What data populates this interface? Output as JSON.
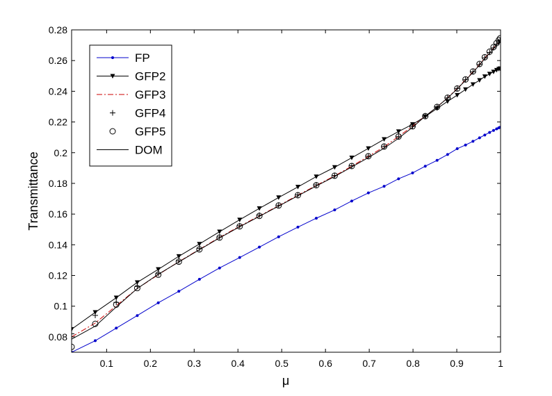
{
  "chart_data": {
    "type": "line",
    "title": "",
    "xlabel": "μ",
    "ylabel": "Transmittance",
    "xlim": [
      0.02,
      1.0
    ],
    "ylim": [
      0.07,
      0.28
    ],
    "grid": false,
    "legend_position": "top-left",
    "xticks": [
      0.1,
      0.2,
      0.3,
      0.4,
      0.5,
      0.6,
      0.7,
      0.8,
      0.9,
      1
    ],
    "xtick_labels": [
      "0.1",
      "0.2",
      "0.3",
      "0.4",
      "0.5",
      "0.6",
      "0.7",
      "0.8",
      "0.9",
      "1"
    ],
    "yticks": [
      0.08,
      0.1,
      0.12,
      0.14,
      0.16,
      0.18,
      0.2,
      0.22,
      0.24,
      0.26,
      0.28
    ],
    "ytick_labels": [
      "0.08",
      "0.1",
      "0.12",
      "0.14",
      "0.16",
      "0.18",
      "0.2",
      "0.22",
      "0.24",
      "0.26",
      "0.28"
    ],
    "series": [
      {
        "name": "FP",
        "color": "#0000cc",
        "line": "solid",
        "marker": "dot",
        "x": [
          0.02,
          0.074,
          0.122,
          0.17,
          0.218,
          0.265,
          0.312,
          0.358,
          0.404,
          0.449,
          0.493,
          0.537,
          0.579,
          0.621,
          0.66,
          0.698,
          0.734,
          0.767,
          0.799,
          0.828,
          0.855,
          0.879,
          0.901,
          0.92,
          0.937,
          0.952,
          0.964,
          0.975,
          0.984,
          0.991,
          0.996,
          0.999
        ],
        "y": [
          0.07,
          0.0775,
          0.0857,
          0.0939,
          0.1022,
          0.1097,
          0.1175,
          0.1249,
          0.1317,
          0.1385,
          0.1452,
          0.1515,
          0.1573,
          0.1627,
          0.1685,
          0.1738,
          0.1781,
          0.183,
          0.1868,
          0.1912,
          0.195,
          0.1988,
          0.2026,
          0.205,
          0.2074,
          0.2097,
          0.2115,
          0.2132,
          0.2145,
          0.2155,
          0.2162,
          0.2165
        ]
      },
      {
        "name": "GFP2",
        "color": "#000000",
        "line": "solid",
        "marker": "triangle-down",
        "x": [
          0.02,
          0.074,
          0.122,
          0.17,
          0.218,
          0.265,
          0.312,
          0.358,
          0.404,
          0.449,
          0.493,
          0.537,
          0.579,
          0.621,
          0.66,
          0.698,
          0.734,
          0.767,
          0.799,
          0.828,
          0.855,
          0.879,
          0.901,
          0.92,
          0.937,
          0.952,
          0.964,
          0.975,
          0.984,
          0.991,
          0.996,
          0.999
        ],
        "y": [
          0.085,
          0.096,
          0.1055,
          0.1155,
          0.124,
          0.1325,
          0.1405,
          0.1485,
          0.1563,
          0.1637,
          0.1708,
          0.1777,
          0.1844,
          0.1905,
          0.1967,
          0.2028,
          0.2087,
          0.2138,
          0.2185,
          0.2235,
          0.2288,
          0.2334,
          0.2375,
          0.2412,
          0.2445,
          0.2472,
          0.2496,
          0.2513,
          0.2527,
          0.2538,
          0.2545,
          0.2548
        ]
      },
      {
        "name": "GFP3",
        "color": "#cc0000",
        "line": "dashdot",
        "marker": "none",
        "x": [
          0.02,
          0.074,
          0.122,
          0.17,
          0.218,
          0.265,
          0.312,
          0.358,
          0.404,
          0.449,
          0.493,
          0.537,
          0.579,
          0.621,
          0.66,
          0.698,
          0.734,
          0.767,
          0.799,
          0.828,
          0.855,
          0.879,
          0.901,
          0.92,
          0.937,
          0.952,
          0.964,
          0.975,
          0.984,
          0.991,
          0.996,
          0.999
        ],
        "y": [
          0.08,
          0.089,
          0.1003,
          0.1115,
          0.1205,
          0.129,
          0.137,
          0.1448,
          0.1521,
          0.1588,
          0.1655,
          0.1723,
          0.1787,
          0.1849,
          0.1912,
          0.1976,
          0.2038,
          0.2106,
          0.2172,
          0.2238,
          0.2298,
          0.2358,
          0.2418,
          0.2475,
          0.2527,
          0.2575,
          0.2617,
          0.2652,
          0.2682,
          0.2706,
          0.2722,
          0.273
        ]
      },
      {
        "name": "GFP4",
        "color": "#000000",
        "line": "none",
        "marker": "plus",
        "x": [
          0.02,
          0.074,
          0.122,
          0.17,
          0.218,
          0.265,
          0.312,
          0.358,
          0.404,
          0.449,
          0.493,
          0.537,
          0.579,
          0.621,
          0.66,
          0.698,
          0.734,
          0.767,
          0.799,
          0.828,
          0.855,
          0.879,
          0.901,
          0.92,
          0.937,
          0.952,
          0.964,
          0.975,
          0.984,
          0.991,
          0.996,
          0.999
        ],
        "y": [
          0.082,
          0.094,
          0.1025,
          0.1128,
          0.1212,
          0.1295,
          0.1376,
          0.1451,
          0.1524,
          0.1593,
          0.1658,
          0.1725,
          0.179,
          0.1852,
          0.1915,
          0.1977,
          0.2041,
          0.2104,
          0.2171,
          0.2238,
          0.2298,
          0.2357,
          0.2418,
          0.2475,
          0.2527,
          0.2575,
          0.2618,
          0.2653,
          0.2683,
          0.2707,
          0.2724,
          0.2732
        ]
      },
      {
        "name": "GFP5",
        "color": "#000000",
        "line": "none",
        "marker": "circle",
        "x": [
          0.02,
          0.074,
          0.122,
          0.17,
          0.218,
          0.265,
          0.312,
          0.358,
          0.404,
          0.449,
          0.493,
          0.537,
          0.579,
          0.621,
          0.66,
          0.698,
          0.734,
          0.767,
          0.799,
          0.828,
          0.855,
          0.879,
          0.901,
          0.92,
          0.937,
          0.952,
          0.964,
          0.975,
          0.984,
          0.991,
          0.996,
          0.999
        ],
        "y": [
          0.0735,
          0.0885,
          0.101,
          0.1118,
          0.1205,
          0.129,
          0.137,
          0.1447,
          0.152,
          0.1588,
          0.1656,
          0.1723,
          0.1788,
          0.185,
          0.1913,
          0.1977,
          0.204,
          0.2105,
          0.2172,
          0.2238,
          0.2298,
          0.2358,
          0.2418,
          0.2477,
          0.2529,
          0.2578,
          0.2622,
          0.2658,
          0.2688,
          0.2714,
          0.2733,
          0.2745
        ]
      },
      {
        "name": "DOM",
        "color": "#000000",
        "line": "solid",
        "marker": "none",
        "x": [
          0.02,
          0.074,
          0.122,
          0.17,
          0.218,
          0.265,
          0.312,
          0.358,
          0.404,
          0.449,
          0.493,
          0.537,
          0.579,
          0.621,
          0.66,
          0.698,
          0.734,
          0.767,
          0.799,
          0.828,
          0.855,
          0.879,
          0.901,
          0.92,
          0.937,
          0.952,
          0.964,
          0.975,
          0.984,
          0.991,
          0.996,
          0.999
        ],
        "y": [
          0.0785,
          0.087,
          0.0995,
          0.1115,
          0.1208,
          0.1288,
          0.1368,
          0.1445,
          0.1517,
          0.1585,
          0.1652,
          0.1719,
          0.1783,
          0.1845,
          0.1907,
          0.1968,
          0.2029,
          0.2094,
          0.2165,
          0.2238,
          0.2298,
          0.2356,
          0.2415,
          0.2472,
          0.2523,
          0.2571,
          0.2613,
          0.2648,
          0.2678,
          0.2702,
          0.2718,
          0.2727
        ]
      }
    ]
  }
}
